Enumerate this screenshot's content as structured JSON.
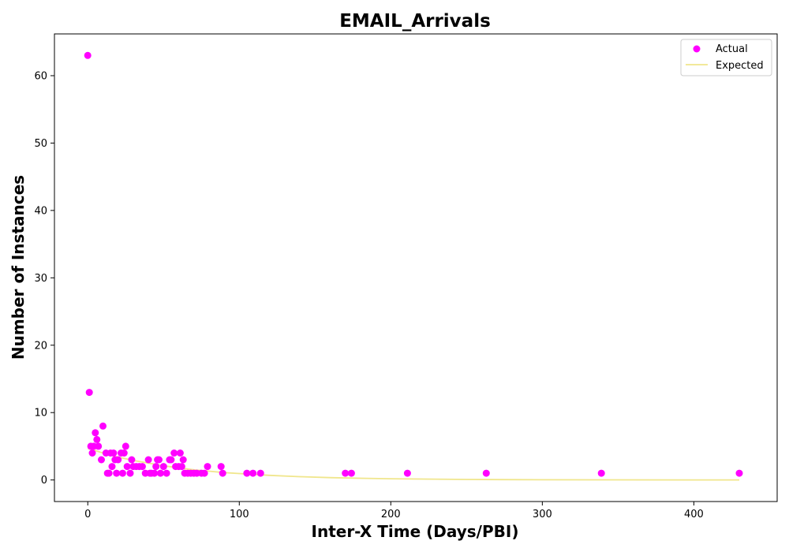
{
  "chart_data": {
    "type": "scatter",
    "title": "EMAIL_Arrivals",
    "xlabel": "Inter-X Time (Days/PBI)",
    "ylabel": "Number of Instances",
    "xlim": [
      -22,
      455
    ],
    "ylim": [
      -3.2,
      66.2
    ],
    "xticks": [
      0,
      100,
      200,
      300,
      400
    ],
    "yticks": [
      0,
      10,
      20,
      30,
      40,
      50,
      60
    ],
    "grid": false,
    "legend_position": "top-right",
    "colors": {
      "actual": "#ff00ff",
      "expected": "#f0e68c"
    },
    "series": [
      {
        "name": "Actual",
        "kind": "scatter",
        "color": "#ff00ff",
        "points": [
          [
            0,
            63
          ],
          [
            1,
            13
          ],
          [
            2,
            5
          ],
          [
            3,
            4
          ],
          [
            4,
            5
          ],
          [
            5,
            7
          ],
          [
            6,
            6
          ],
          [
            7,
            5
          ],
          [
            9,
            3
          ],
          [
            10,
            8
          ],
          [
            12,
            4
          ],
          [
            13,
            1
          ],
          [
            14,
            1
          ],
          [
            15,
            4
          ],
          [
            16,
            2
          ],
          [
            17,
            4
          ],
          [
            18,
            3
          ],
          [
            19,
            1
          ],
          [
            20,
            3
          ],
          [
            22,
            4
          ],
          [
            23,
            1
          ],
          [
            24,
            4
          ],
          [
            25,
            5
          ],
          [
            26,
            2
          ],
          [
            28,
            1
          ],
          [
            29,
            3
          ],
          [
            30,
            2
          ],
          [
            32,
            2
          ],
          [
            34,
            2
          ],
          [
            36,
            2
          ],
          [
            38,
            1
          ],
          [
            40,
            3
          ],
          [
            41,
            1
          ],
          [
            42,
            1
          ],
          [
            44,
            1
          ],
          [
            45,
            2
          ],
          [
            46,
            3
          ],
          [
            47,
            3
          ],
          [
            48,
            1
          ],
          [
            50,
            2
          ],
          [
            52,
            1
          ],
          [
            54,
            3
          ],
          [
            55,
            3
          ],
          [
            57,
            4
          ],
          [
            58,
            2
          ],
          [
            60,
            2
          ],
          [
            61,
            4
          ],
          [
            62,
            2
          ],
          [
            63,
            3
          ],
          [
            64,
            1
          ],
          [
            66,
            1
          ],
          [
            68,
            1
          ],
          [
            70,
            1
          ],
          [
            72,
            1
          ],
          [
            75,
            1
          ],
          [
            77,
            1
          ],
          [
            79,
            2
          ],
          [
            88,
            2
          ],
          [
            89,
            1
          ],
          [
            105,
            1
          ],
          [
            109,
            1
          ],
          [
            114,
            1
          ],
          [
            170,
            1
          ],
          [
            174,
            1
          ],
          [
            211,
            1
          ],
          [
            263,
            1
          ],
          [
            339,
            1
          ],
          [
            430,
            1
          ]
        ]
      },
      {
        "name": "Expected",
        "kind": "line",
        "color": "#f0e68c",
        "points": [
          [
            0,
            4.7
          ],
          [
            10,
            4.0
          ],
          [
            20,
            3.4
          ],
          [
            30,
            2.9
          ],
          [
            40,
            2.5
          ],
          [
            50,
            2.1
          ],
          [
            60,
            1.8
          ],
          [
            70,
            1.5
          ],
          [
            80,
            1.3
          ],
          [
            90,
            1.1
          ],
          [
            100,
            0.95
          ],
          [
            120,
            0.68
          ],
          [
            140,
            0.49
          ],
          [
            160,
            0.35
          ],
          [
            180,
            0.25
          ],
          [
            200,
            0.18
          ],
          [
            250,
            0.08
          ],
          [
            300,
            0.03
          ],
          [
            350,
            0.015
          ],
          [
            400,
            0.006
          ],
          [
            430,
            0.004
          ]
        ]
      }
    ]
  }
}
